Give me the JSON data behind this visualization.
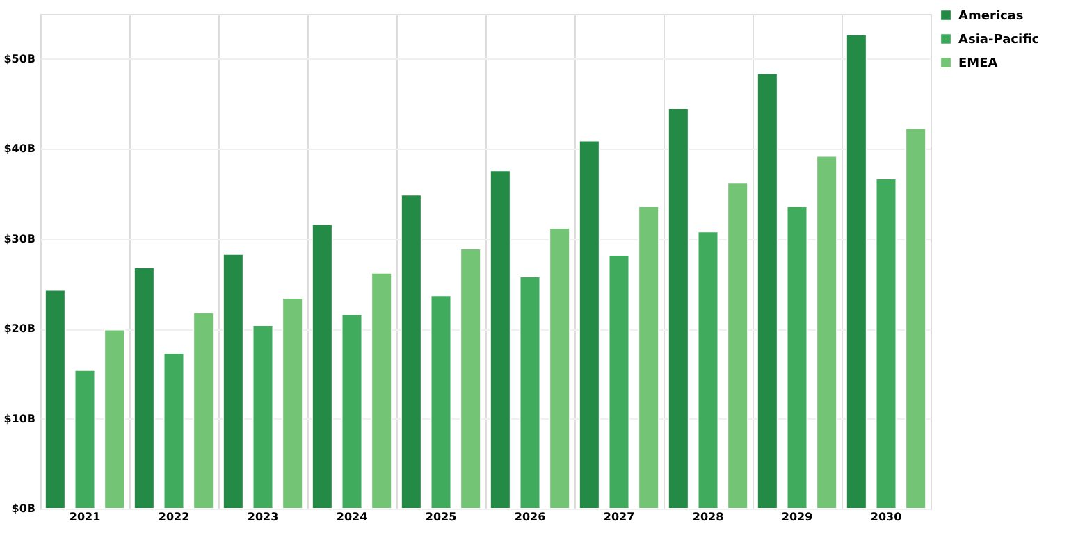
{
  "chart_data": {
    "type": "bar",
    "categories": [
      "2021",
      "2022",
      "2023",
      "2024",
      "2025",
      "2026",
      "2027",
      "2028",
      "2029",
      "2030"
    ],
    "series": [
      {
        "name": "Americas",
        "color": "#238b45",
        "values": [
          24.3,
          26.8,
          28.3,
          31.6,
          34.9,
          37.6,
          40.9,
          44.5,
          48.4,
          52.7
        ]
      },
      {
        "name": "Asia-Pacific",
        "color": "#41ab5d",
        "values": [
          15.4,
          17.3,
          20.4,
          21.6,
          23.7,
          25.8,
          28.2,
          30.8,
          33.6,
          36.7
        ]
      },
      {
        "name": "EMEA",
        "color": "#74c476",
        "values": [
          19.9,
          21.8,
          23.4,
          26.2,
          28.9,
          31.2,
          33.6,
          36.2,
          39.2,
          42.3
        ]
      }
    ],
    "ylim": [
      0,
      55
    ],
    "yticks": [
      {
        "value": 0,
        "label": "$0B"
      },
      {
        "value": 10,
        "label": "$10B"
      },
      {
        "value": 20,
        "label": "$20B"
      },
      {
        "value": 30,
        "label": "$30B"
      },
      {
        "value": 40,
        "label": "$40B"
      },
      {
        "value": 50,
        "label": "$50B"
      }
    ],
    "grid": true,
    "legend": "top right"
  }
}
